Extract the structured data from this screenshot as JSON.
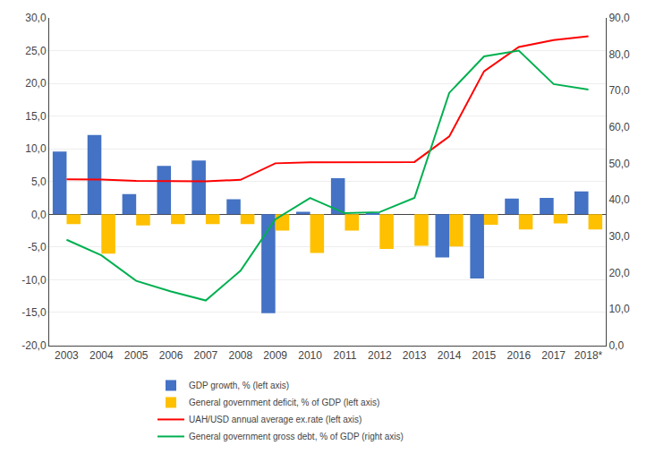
{
  "chart_data": {
    "type": "bar",
    "categories": [
      "2003",
      "2004",
      "2005",
      "2006",
      "2007",
      "2008",
      "2009",
      "2010",
      "2011",
      "2012",
      "2013",
      "2014",
      "2015",
      "2016",
      "2017",
      "2018*"
    ],
    "series": [
      {
        "name": "GDP growth, % (left axis)",
        "type": "bar",
        "color": "#4472C4",
        "values": [
          9.6,
          12.1,
          3.1,
          7.4,
          8.2,
          2.3,
          -15.1,
          0.4,
          5.5,
          0.2,
          0.0,
          -6.6,
          -9.8,
          2.4,
          2.5,
          3.5
        ]
      },
      {
        "name": "General government deficit, % of GDP (left axis)",
        "type": "bar",
        "color": "#FFC000",
        "values": [
          -1.5,
          -6.0,
          -1.7,
          -1.5,
          -1.5,
          -1.5,
          -2.5,
          -5.9,
          -2.5,
          -5.3,
          -4.8,
          -4.9,
          -1.6,
          -2.3,
          -1.4,
          -2.3
        ]
      },
      {
        "name": "UAH/USD annual average ex.rate (left axis)",
        "type": "line",
        "color": "#FF0000",
        "values": [
          5.33,
          5.32,
          5.12,
          5.05,
          5.05,
          5.27,
          7.79,
          7.94,
          7.97,
          7.99,
          7.99,
          11.89,
          21.84,
          25.55,
          26.6,
          27.2
        ]
      },
      {
        "name": "General government gross debt, % of GDP (right axis)",
        "type": "line",
        "color": "#00B050",
        "axis": "y2",
        "values": [
          29.0,
          24.7,
          17.7,
          14.8,
          12.3,
          20.5,
          34.6,
          40.5,
          36.3,
          36.6,
          40.5,
          69.4,
          79.4,
          81.0,
          71.8,
          70.3
        ]
      }
    ],
    "ylim": [
      -20,
      30
    ],
    "yticks": [
      {
        "value": -20,
        "label": "-20,0"
      },
      {
        "value": -15,
        "label": "-15,0"
      },
      {
        "value": -10,
        "label": "-10,0"
      },
      {
        "value": -5,
        "label": "-5,0"
      },
      {
        "value": 0,
        "label": "0,0"
      },
      {
        "value": 5,
        "label": "5,0"
      },
      {
        "value": 10,
        "label": "10,0"
      },
      {
        "value": 15,
        "label": "15,0"
      },
      {
        "value": 20,
        "label": "20,0"
      },
      {
        "value": 25,
        "label": "25,0"
      },
      {
        "value": 30,
        "label": "30,0"
      }
    ],
    "y2lim": [
      0,
      90
    ],
    "y2ticks": [
      {
        "value": 0,
        "label": "0,0"
      },
      {
        "value": 10,
        "label": "10,0"
      },
      {
        "value": 20,
        "label": "20,0"
      },
      {
        "value": 30,
        "label": "30,0"
      },
      {
        "value": 40,
        "label": "40,0"
      },
      {
        "value": 50,
        "label": "50,0"
      },
      {
        "value": 60,
        "label": "60,0"
      },
      {
        "value": 70,
        "label": "70,0"
      },
      {
        "value": 80,
        "label": "80,0"
      },
      {
        "value": 90,
        "label": "90,0"
      }
    ],
    "grid": true,
    "legend": "bottom"
  }
}
